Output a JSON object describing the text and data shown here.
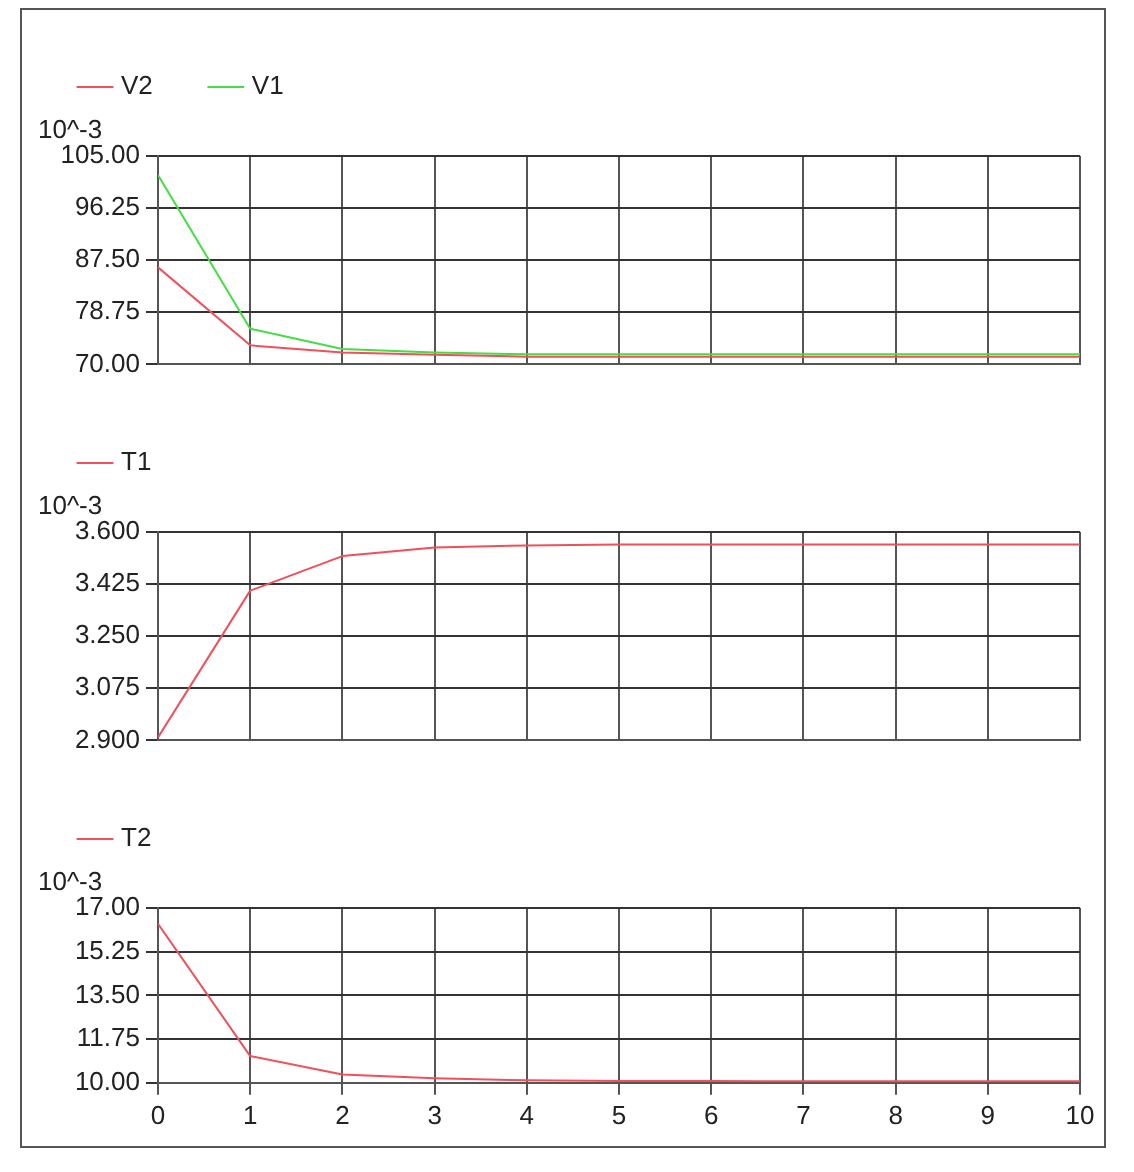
{
  "chart_data": [
    {
      "type": "line",
      "ylabel": "10^-3",
      "x": [
        0,
        1,
        2,
        3,
        4,
        5,
        6,
        7,
        8,
        9,
        10
      ],
      "xlim": [
        0,
        10
      ],
      "xticks": [
        0,
        1,
        2,
        3,
        4,
        5,
        6,
        7,
        8,
        9,
        10
      ],
      "ylim": [
        70,
        105
      ],
      "yticks": [
        {
          "value": 70,
          "label": "70.00"
        },
        {
          "value": 78.75,
          "label": "78.75"
        },
        {
          "value": 87.5,
          "label": "87.50"
        },
        {
          "value": 96.25,
          "label": "96.25"
        },
        {
          "value": 105,
          "label": "105.00"
        }
      ],
      "grid": true,
      "legend": "top left",
      "tick_labels": "y",
      "marker": "none",
      "series": [
        {
          "name": "V2",
          "color": "#f0505a",
          "values": [
            86.3,
            73.2,
            72.0,
            71.6,
            71.3,
            71.3,
            71.3,
            71.3,
            71.3,
            71.3,
            71.3
          ]
        },
        {
          "name": "V1",
          "color": "#44dd44",
          "values": [
            101.8,
            76.0,
            72.6,
            72.0,
            71.7,
            71.7,
            71.7,
            71.7,
            71.7,
            71.7,
            71.7
          ]
        }
      ]
    },
    {
      "type": "line",
      "ylabel": "10^-3",
      "x": [
        0,
        1,
        2,
        3,
        4,
        5,
        6,
        7,
        8,
        9,
        10
      ],
      "xlim": [
        0,
        10
      ],
      "xticks": [
        0,
        1,
        2,
        3,
        4,
        5,
        6,
        7,
        8,
        9,
        10
      ],
      "ylim": [
        2.9,
        3.6
      ],
      "yticks": [
        {
          "value": 2.9,
          "label": "2.900"
        },
        {
          "value": 3.075,
          "label": "3.075"
        },
        {
          "value": 3.25,
          "label": "3.250"
        },
        {
          "value": 3.425,
          "label": "3.425"
        },
        {
          "value": 3.6,
          "label": "3.600"
        }
      ],
      "grid": true,
      "legend": "top left",
      "tick_labels": "y",
      "marker": "none",
      "series": [
        {
          "name": "T1",
          "color": "#f0505a",
          "values": [
            2.91,
            3.403,
            3.519,
            3.548,
            3.555,
            3.558,
            3.558,
            3.558,
            3.558,
            3.558,
            3.558
          ]
        }
      ]
    },
    {
      "type": "line",
      "ylabel": "10^-3",
      "x": [
        0,
        1,
        2,
        3,
        4,
        5,
        6,
        7,
        8,
        9,
        10
      ],
      "xlim": [
        0,
        10
      ],
      "xticks": [
        0,
        1,
        2,
        3,
        4,
        5,
        6,
        7,
        8,
        9,
        10
      ],
      "ylim": [
        10,
        17
      ],
      "yticks": [
        {
          "value": 10,
          "label": "10.00"
        },
        {
          "value": 11.75,
          "label": "11.75"
        },
        {
          "value": 13.5,
          "label": "13.50"
        },
        {
          "value": 15.25,
          "label": "15.25"
        },
        {
          "value": 17,
          "label": "17.00"
        }
      ],
      "grid": true,
      "legend": "top left",
      "marker": "none",
      "series": [
        {
          "name": "T2",
          "color": "#f0505a",
          "values": [
            16.37,
            11.07,
            10.33,
            10.18,
            10.1,
            10.07,
            10.07,
            10.06,
            10.06,
            10.06,
            10.06
          ]
        }
      ]
    }
  ]
}
